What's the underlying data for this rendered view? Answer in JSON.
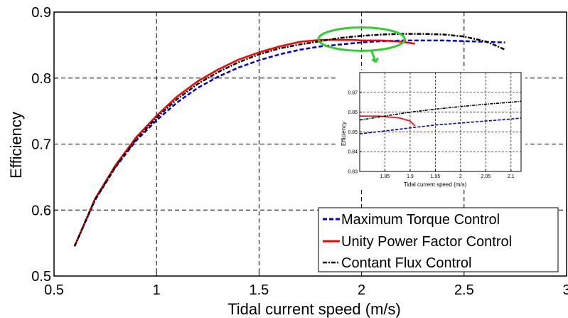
{
  "chart_data": {
    "type": "line",
    "xlabel": "Tidal current speed (m/s)",
    "ylabel": "Efficiency",
    "xlim": [
      0.5,
      3
    ],
    "ylim": [
      0.5,
      0.9
    ],
    "xticks": [
      "0.5",
      "1",
      "1.5",
      "2",
      "2.5",
      "3"
    ],
    "yticks": [
      "0.5",
      "0.6",
      "0.7",
      "0.8",
      "0.9"
    ],
    "grid": true,
    "legend_position": "bottom-right",
    "series": [
      {
        "name": "Maximum Torque Control",
        "color": "#0000cc",
        "style": "dashed",
        "x": [
          0.6,
          0.7,
          0.8,
          0.9,
          1.0,
          1.1,
          1.2,
          1.3,
          1.4,
          1.5,
          1.6,
          1.7,
          1.8,
          1.9,
          2.0,
          2.1,
          2.2,
          2.3,
          2.4,
          2.5,
          2.6,
          2.7
        ],
        "y": [
          0.545,
          0.615,
          0.665,
          0.705,
          0.736,
          0.763,
          0.785,
          0.802,
          0.816,
          0.827,
          0.836,
          0.843,
          0.848,
          0.851,
          0.854,
          0.856,
          0.857,
          0.857,
          0.857,
          0.856,
          0.855,
          0.854
        ]
      },
      {
        "name": "Unity Power Factor Control",
        "color": "#ff0000",
        "style": "solid",
        "x": [
          0.6,
          0.7,
          0.8,
          0.9,
          1.0,
          1.1,
          1.2,
          1.3,
          1.4,
          1.5,
          1.6,
          1.7,
          1.8,
          1.85,
          1.9,
          1.95,
          2.0,
          2.05,
          2.1,
          2.15,
          2.2,
          2.26
        ],
        "y": [
          0.545,
          0.617,
          0.668,
          0.71,
          0.743,
          0.772,
          0.795,
          0.813,
          0.828,
          0.839,
          0.848,
          0.855,
          0.858,
          0.858,
          0.858,
          0.858,
          0.857,
          0.857,
          0.857,
          0.856,
          0.855,
          0.852
        ]
      },
      {
        "name": "Contant Flux Control",
        "color": "#000000",
        "style": "dashdot",
        "x": [
          0.6,
          0.7,
          0.8,
          0.9,
          1.0,
          1.1,
          1.2,
          1.3,
          1.4,
          1.5,
          1.6,
          1.7,
          1.8,
          1.9,
          2.0,
          2.1,
          2.2,
          2.3,
          2.4,
          2.5,
          2.6,
          2.65,
          2.7
        ],
        "y": [
          0.545,
          0.616,
          0.666,
          0.707,
          0.74,
          0.768,
          0.791,
          0.809,
          0.824,
          0.836,
          0.845,
          0.851,
          0.856,
          0.861,
          0.864,
          0.866,
          0.867,
          0.867,
          0.866,
          0.863,
          0.856,
          0.85,
          0.843
        ]
      }
    ],
    "annotation": {
      "shape": "ellipse",
      "color": "#33cc33",
      "x_range": [
        1.8,
        2.2
      ],
      "y_range": [
        0.85,
        0.868
      ]
    },
    "inset": {
      "xlabel": "Tidal current speed (m/s)",
      "ylabel": "Efficiency",
      "xlim": [
        1.8,
        2.12
      ],
      "ylim": [
        0.83,
        0.88
      ],
      "xticks": [
        "1.85",
        "1.9",
        "1.95",
        "2",
        "2.05",
        "2.1"
      ],
      "yticks": [
        "0.83",
        "0.84",
        "0.85",
        "0.86",
        "0.87"
      ],
      "grid": true,
      "series": [
        {
          "name": "Maximum Torque Control",
          "color": "#0000cc",
          "style": "dashed",
          "x": [
            1.8,
            1.85,
            1.9,
            1.95,
            2.0,
            2.05,
            2.1,
            2.12
          ],
          "y": [
            0.849,
            0.8505,
            0.852,
            0.8535,
            0.8545,
            0.8555,
            0.8565,
            0.857
          ]
        },
        {
          "name": "Unity Power Factor Control",
          "color": "#ff0000",
          "style": "solid",
          "x": [
            1.8,
            1.82,
            1.84,
            1.86,
            1.88,
            1.9,
            1.91
          ],
          "y": [
            0.858,
            0.858,
            0.858,
            0.8575,
            0.857,
            0.8555,
            0.853
          ]
        },
        {
          "name": "Contant Flux Control",
          "color": "#000000",
          "style": "dashdot",
          "x": [
            1.8,
            1.85,
            1.9,
            1.95,
            2.0,
            2.05,
            2.1,
            2.12
          ],
          "y": [
            0.856,
            0.858,
            0.86,
            0.8615,
            0.8628,
            0.864,
            0.865,
            0.8655
          ]
        }
      ]
    }
  }
}
